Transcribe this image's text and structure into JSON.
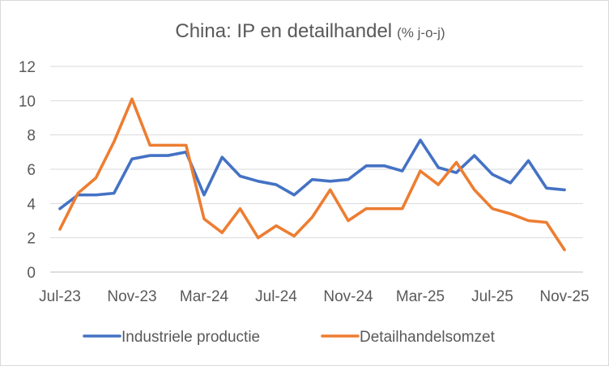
{
  "chart_data": {
    "type": "line",
    "title": "China: IP en detailhandel",
    "subtitle": "(% j-o-j)",
    "xlabel": "",
    "ylabel": "",
    "ylim": [
      0,
      12
    ],
    "yticks": [
      "0",
      "2",
      "4",
      "6",
      "8",
      "10",
      "12"
    ],
    "xtick_labels": [
      "Jul-23",
      "Nov-23",
      "Mar-24",
      "Jul-24",
      "Nov-24",
      "Mar-25",
      "Jul-25",
      "Nov-25"
    ],
    "x": [
      "Jul-23",
      "Aug-23",
      "Sep-23",
      "Oct-23",
      "Nov-23",
      "Dec-23",
      "Jan-24",
      "Feb-24",
      "Mar-24",
      "Apr-24",
      "May-24",
      "Jun-24",
      "Jul-24",
      "Aug-24",
      "Sep-24",
      "Oct-24",
      "Nov-24",
      "Dec-24",
      "Jan-25",
      "Feb-25",
      "Mar-25",
      "Apr-25",
      "May-25",
      "Jun-25",
      "Jul-25",
      "Aug-25",
      "Sep-25",
      "Oct-25",
      "Nov-25"
    ],
    "grid": true,
    "legend_position": "bottom",
    "series": [
      {
        "name": "Industriele productie",
        "color": "#4472C4",
        "values": [
          3.7,
          4.5,
          4.5,
          4.6,
          6.6,
          6.8,
          6.8,
          7.0,
          4.5,
          6.7,
          5.6,
          5.3,
          5.1,
          4.5,
          5.4,
          5.3,
          5.4,
          6.2,
          6.2,
          5.9,
          7.7,
          6.1,
          5.8,
          6.8,
          5.7,
          5.2,
          6.5,
          4.9,
          4.8
        ]
      },
      {
        "name": "Detailhandelsomzet",
        "color": "#ED7D31",
        "values": [
          2.5,
          4.6,
          5.5,
          7.6,
          10.1,
          7.4,
          7.4,
          7.4,
          3.1,
          2.3,
          3.7,
          2.0,
          2.7,
          2.1,
          3.2,
          4.8,
          3.0,
          3.7,
          3.7,
          3.7,
          5.9,
          5.1,
          6.4,
          4.8,
          3.7,
          3.4,
          3.0,
          2.9,
          1.3
        ]
      }
    ]
  }
}
